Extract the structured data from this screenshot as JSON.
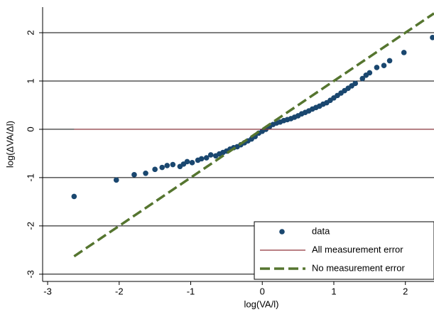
{
  "chart_data": {
    "type": "scatter",
    "x_label": "log(VA/l)",
    "y_label": "log(ΔVA/Δl)",
    "xlim": [
      -3.07,
      2.4
    ],
    "ylim": [
      -3.15,
      2.53
    ],
    "xticks": [
      -3,
      -2,
      -1,
      0,
      1,
      2
    ],
    "yticks": [
      -3,
      -2,
      -1,
      0,
      1,
      2
    ],
    "grid": true,
    "legend": "lower right",
    "series": [
      {
        "name": "data",
        "type": "scatter",
        "color": "#1a476f",
        "x": [
          -2.63,
          -2.04,
          -1.79,
          -1.63,
          -1.5,
          -1.4,
          -1.33,
          -1.25,
          -1.15,
          -1.1,
          -1.05,
          -0.98,
          -0.9,
          -0.85,
          -0.78,
          -0.72,
          -0.65,
          -0.6,
          -0.55,
          -0.5,
          -0.45,
          -0.4,
          -0.35,
          -0.3,
          -0.25,
          -0.2,
          -0.15,
          -0.1,
          -0.05,
          0,
          0.05,
          0.1,
          0.15,
          0.2,
          0.25,
          0.3,
          0.35,
          0.4,
          0.45,
          0.5,
          0.55,
          0.6,
          0.65,
          0.7,
          0.75,
          0.8,
          0.85,
          0.9,
          0.95,
          1.0,
          1.05,
          1.1,
          1.15,
          1.2,
          1.25,
          1.3,
          1.4,
          1.45,
          1.5,
          1.6,
          1.7,
          1.78,
          1.98,
          2.38
        ],
        "values": [
          -1.39,
          -1.05,
          -0.94,
          -0.91,
          -0.83,
          -0.79,
          -0.75,
          -0.73,
          -0.77,
          -0.72,
          -0.67,
          -0.69,
          -0.64,
          -0.61,
          -0.59,
          -0.53,
          -0.55,
          -0.51,
          -0.48,
          -0.45,
          -0.41,
          -0.38,
          -0.36,
          -0.32,
          -0.28,
          -0.24,
          -0.2,
          -0.15,
          -0.08,
          -0.04,
          0,
          0.05,
          0.1,
          0.13,
          0.15,
          0.18,
          0.2,
          0.22,
          0.25,
          0.28,
          0.32,
          0.35,
          0.38,
          0.42,
          0.45,
          0.48,
          0.52,
          0.55,
          0.6,
          0.65,
          0.7,
          0.75,
          0.8,
          0.85,
          0.9,
          0.95,
          1.05,
          1.12,
          1.17,
          1.28,
          1.32,
          1.42,
          1.59,
          1.9
        ]
      },
      {
        "name": "All measurement error",
        "type": "line",
        "color": "#90353b",
        "dashed": false,
        "x": [
          -2.63,
          2.4
        ],
        "values": [
          0,
          0
        ]
      },
      {
        "name": "No measurement error",
        "type": "line",
        "color": "#55752f",
        "dashed": true,
        "x": [
          -2.63,
          2.4
        ],
        "values": [
          -2.63,
          2.4
        ]
      }
    ]
  }
}
